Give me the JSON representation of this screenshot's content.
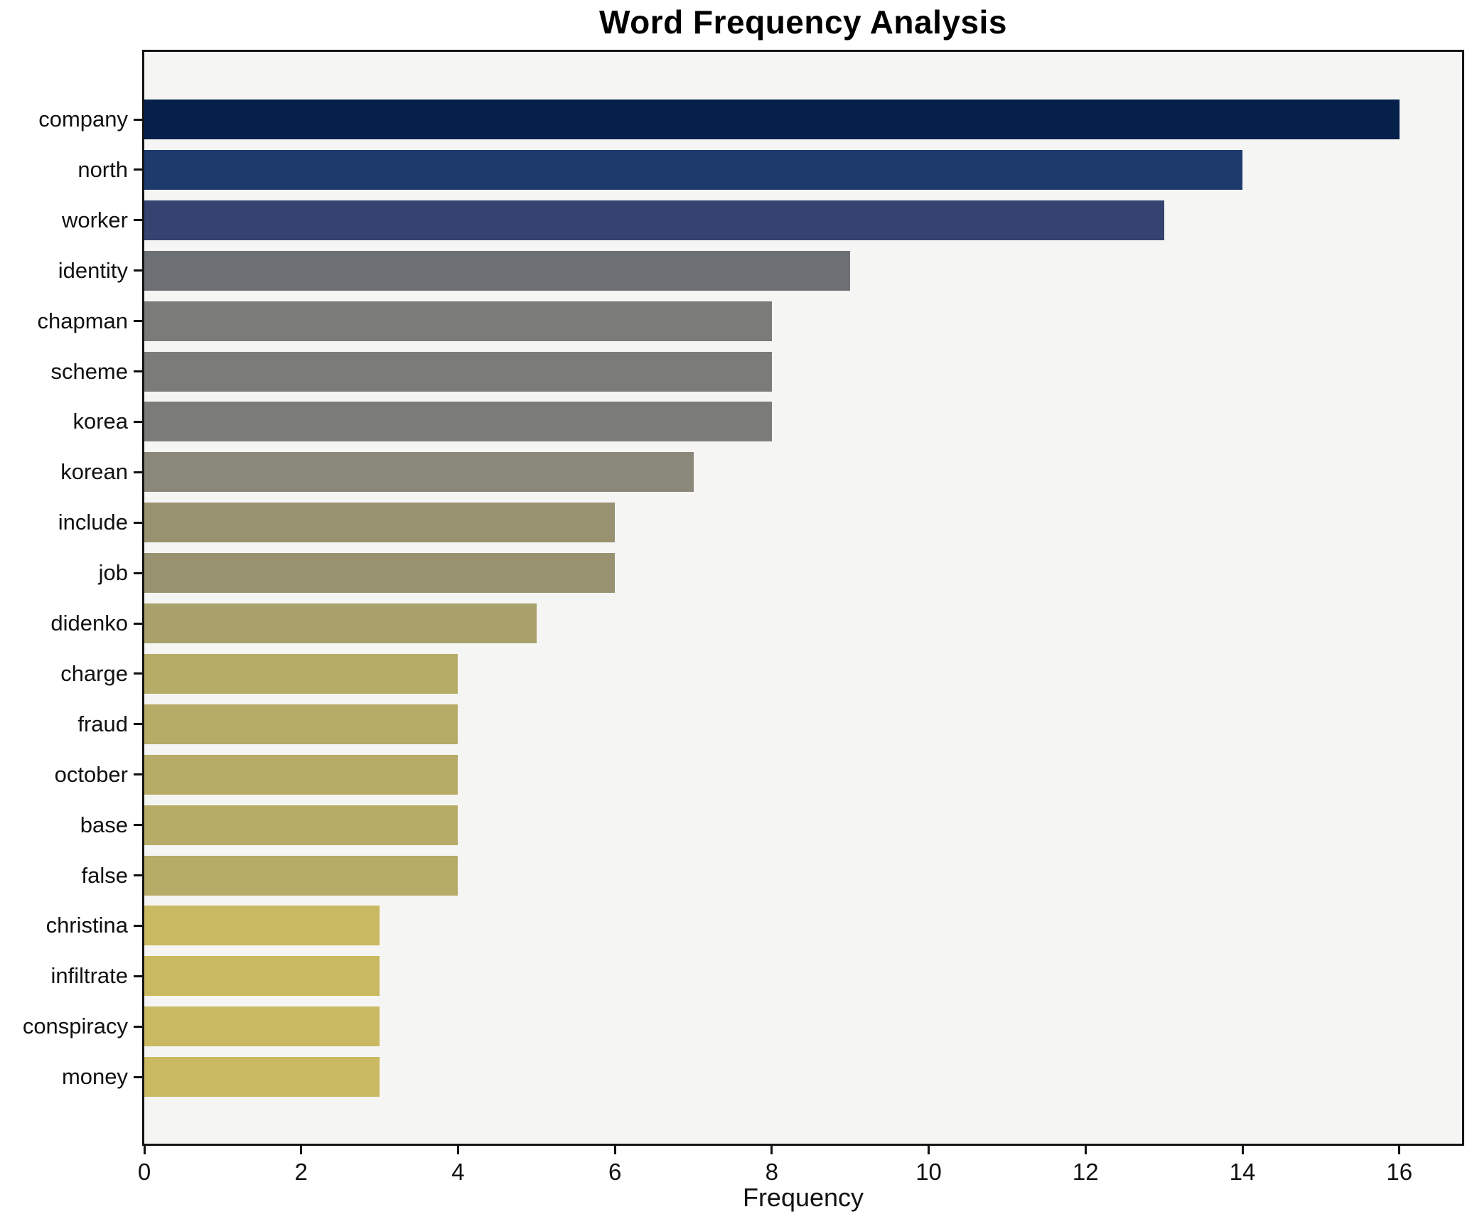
{
  "chart_data": {
    "type": "bar",
    "orientation": "horizontal",
    "title": "Word Frequency Analysis",
    "xlabel": "Frequency",
    "ylabel": "",
    "grid": false,
    "legend": "none",
    "xlim": [
      0,
      16.8
    ],
    "x_ticks": [
      0,
      2,
      4,
      6,
      8,
      10,
      12,
      14,
      16
    ],
    "categories": [
      "company",
      "north",
      "worker",
      "identity",
      "chapman",
      "scheme",
      "korea",
      "korean",
      "include",
      "job",
      "didenko",
      "charge",
      "fraud",
      "october",
      "base",
      "false",
      "christina",
      "infiltrate",
      "conspiracy",
      "money"
    ],
    "values": [
      16,
      14,
      13,
      9,
      8,
      8,
      8,
      7,
      6,
      6,
      5,
      4,
      4,
      4,
      4,
      4,
      3,
      3,
      3,
      3
    ],
    "bar_colors": [
      "#05204a",
      "#1e3a6d",
      "#344370",
      "#6c6f74",
      "#7b7b77",
      "#7b7b77",
      "#7b7b77",
      "#8a8878",
      "#989270",
      "#989270",
      "#a9a06c",
      "#b6ab67",
      "#b6ab67",
      "#b6ab67",
      "#b6ab67",
      "#b6ab67",
      "#c9b961",
      "#c9b961",
      "#c9b961",
      "#c9b961"
    ],
    "plot_background": "#f5f5f3",
    "figure_background": "#ffffff",
    "spine_color": "#141414",
    "text_color": "#111111"
  }
}
